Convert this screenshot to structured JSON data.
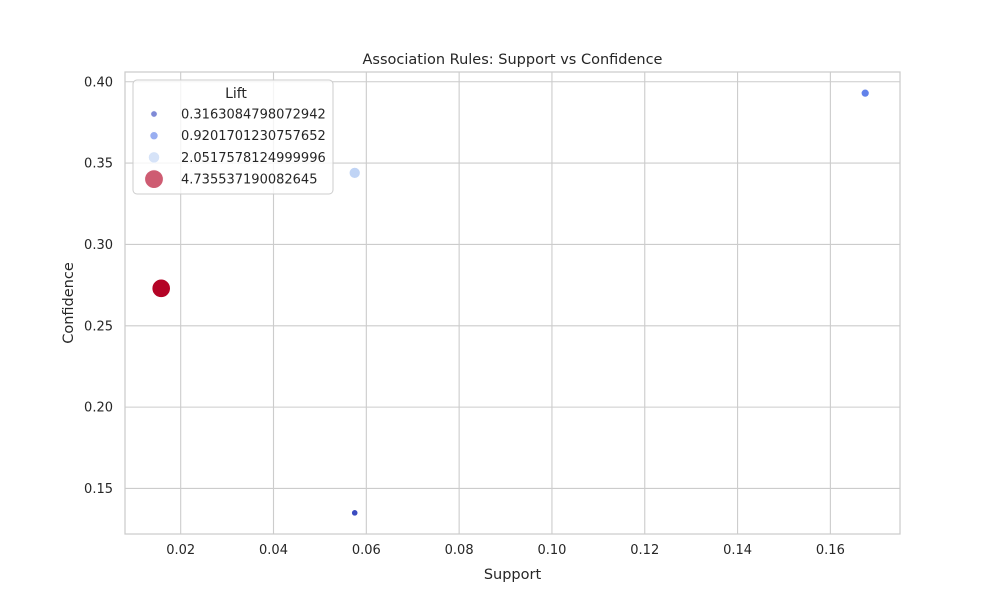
{
  "chart_data": {
    "type": "scatter",
    "title": "Association Rules: Support vs Confidence",
    "xlabel": "Support",
    "ylabel": "Confidence",
    "xlim": [
      0.008,
      0.175
    ],
    "ylim": [
      0.122,
      0.406
    ],
    "xticks": [
      0.02,
      0.04,
      0.06,
      0.08,
      0.1,
      0.12,
      0.14,
      0.16
    ],
    "xtick_labels": [
      "0.02",
      "0.04",
      "0.06",
      "0.08",
      "0.10",
      "0.12",
      "0.14",
      "0.16"
    ],
    "yticks": [
      0.15,
      0.2,
      0.25,
      0.3,
      0.35,
      0.4
    ],
    "ytick_labels": [
      "0.15",
      "0.20",
      "0.25",
      "0.30",
      "0.35",
      "0.40"
    ],
    "grid": true,
    "legend": {
      "title": "Lift",
      "placement": "upper-left",
      "entries": [
        {
          "label": "0.3163084798072942",
          "lift": 0.3163084798072942
        },
        {
          "label": "0.9201701230757652",
          "lift": 0.9201701230757652
        },
        {
          "label": "2.0517578124999996",
          "lift": 2.0517578124999996
        },
        {
          "label": "4.735537190082645",
          "lift": 4.735537190082645
        }
      ]
    },
    "points": [
      {
        "x": 0.0575,
        "y": 0.135,
        "lift": 0.3163084798072942
      },
      {
        "x": 0.1675,
        "y": 0.393,
        "lift": 0.9201701230757652
      },
      {
        "x": 0.0575,
        "y": 0.344,
        "lift": 2.0517578124999996
      },
      {
        "x": 0.0158,
        "y": 0.273,
        "lift": 4.735537190082645
      }
    ],
    "colormap": "coolwarm",
    "colors": {
      "0.3163084798072942": "#3b4cc0",
      "0.9201701230757652": "#6282ea",
      "2.0517578124999996": "#c0d4f5",
      "4.735537190082645": "#b40426"
    },
    "grid_color": "#cccccc",
    "spine_color": "#cccccc"
  }
}
